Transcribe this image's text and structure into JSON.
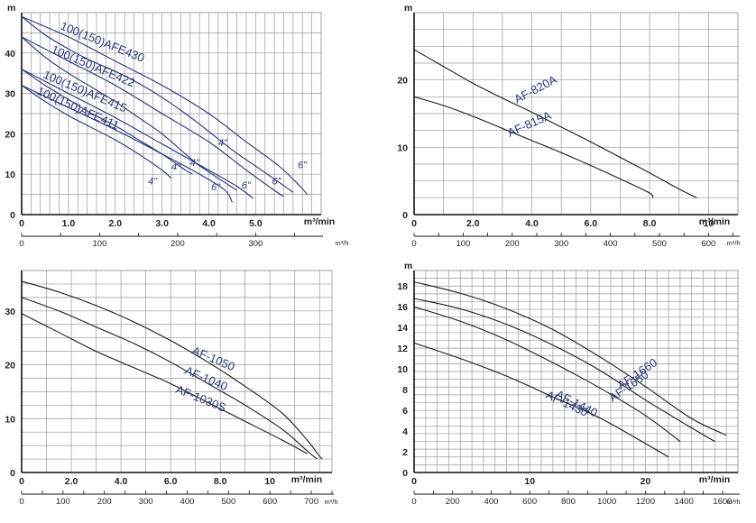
{
  "colors": {
    "grid": "#9a9a9a",
    "axis": "#111111",
    "curve": "#1a1a1a",
    "curve_blue": "#24357a",
    "label": "#2a3a78"
  },
  "chart_data": [
    {
      "type": "line",
      "ylabel": "m",
      "xlabel": "m³/min",
      "x2label": "m³/h",
      "xlim": [
        0,
        6.4
      ],
      "ylim": [
        0,
        50
      ],
      "x_major": [
        0,
        6.4,
        0.2
      ],
      "y_major": [
        0,
        50,
        5
      ],
      "x_ticks": [
        0,
        1.0,
        2.0,
        3.0,
        4.0,
        5.0
      ],
      "x_tick_labels": [
        "0",
        "1.0",
        "2.0",
        "3.0",
        "4.0",
        "5.0"
      ],
      "y_ticks": [
        0,
        10,
        20,
        30,
        40
      ],
      "y_tick_labels": [
        "0",
        "10",
        "20",
        "30",
        "40"
      ],
      "x2_ticks": [
        0,
        100,
        200,
        300
      ],
      "x2_tick_labels": [
        "0",
        "100",
        "200",
        "300"
      ],
      "x2_factor": 60,
      "series": [
        {
          "name": "100(150)AFE430",
          "points": [
            [
              0,
              49
            ],
            [
              0.5,
              44.5
            ],
            [
              1.0,
              41
            ],
            [
              1.5,
              38
            ],
            [
              2.0,
              35.5
            ],
            [
              2.5,
              32.5
            ],
            [
              3.0,
              29
            ],
            [
              3.5,
              25
            ],
            [
              3.9,
              21.5
            ]
          ]
        },
        {
          "name": "100(150)AFE422",
          "points": [
            [
              0,
              44
            ],
            [
              0.5,
              39
            ],
            [
              1.0,
              35
            ],
            [
              1.5,
              31.5
            ],
            [
              2.0,
              28
            ],
            [
              2.5,
              24
            ],
            [
              3.0,
              20
            ],
            [
              3.5,
              15
            ],
            [
              3.75,
              12.5
            ]
          ]
        },
        {
          "name": "100(150)AFE415",
          "points": [
            [
              0,
              36
            ],
            [
              0.5,
              32
            ],
            [
              1.0,
              28.5
            ],
            [
              1.5,
              25
            ],
            [
              2.0,
              22
            ],
            [
              2.5,
              18.5
            ],
            [
              3.0,
              15
            ],
            [
              3.5,
              11
            ],
            [
              3.65,
              10
            ]
          ]
        },
        {
          "name": "100(150)AFE411",
          "points": [
            [
              0,
              32
            ],
            [
              0.5,
              28
            ],
            [
              1.0,
              24.5
            ],
            [
              1.5,
              21.5
            ],
            [
              2.0,
              18.5
            ],
            [
              2.5,
              15
            ],
            [
              3.0,
              11
            ],
            [
              3.2,
              9
            ]
          ]
        }
      ],
      "extra_curves": [
        {
          "points": [
            [
              3.9,
              21.5
            ],
            [
              4.5,
              16
            ],
            [
              5.0,
              12
            ],
            [
              5.5,
              8
            ],
            [
              5.8,
              5.5
            ]
          ]
        },
        {
          "points": [
            [
              3.75,
              12.5
            ],
            [
              4.2,
              9
            ],
            [
              4.6,
              6
            ]
          ]
        },
        {
          "points": [
            [
              0,
              49
            ],
            [
              1.0,
              44
            ],
            [
              2.0,
              38
            ],
            [
              3.0,
              32
            ],
            [
              4.0,
              25
            ],
            [
              4.8,
              18
            ],
            [
              5.5,
              12
            ],
            [
              5.95,
              7
            ],
            [
              6.1,
              5
            ]
          ]
        },
        {
          "points": [
            [
              0,
              44
            ],
            [
              1.0,
              38
            ],
            [
              2.0,
              32
            ],
            [
              3.0,
              25
            ],
            [
              4.0,
              18
            ],
            [
              4.8,
              11
            ],
            [
              5.4,
              6
            ],
            [
              5.6,
              4.5
            ]
          ]
        },
        {
          "points": [
            [
              0,
              36
            ],
            [
              1.0,
              30
            ],
            [
              2.0,
              24
            ],
            [
              3.0,
              17.5
            ],
            [
              4.0,
              11
            ],
            [
              4.6,
              7
            ],
            [
              4.95,
              4
            ]
          ]
        },
        {
          "points": [
            [
              0,
              32
            ],
            [
              1.0,
              26.5
            ],
            [
              2.0,
              21
            ],
            [
              3.0,
              15
            ],
            [
              3.8,
              10
            ],
            [
              4.35,
              6
            ],
            [
              4.5,
              3
            ]
          ]
        }
      ],
      "size_labels": [
        {
          "text": "4\"",
          "x": 4.2,
          "y": 17
        },
        {
          "text": "4\"",
          "x": 3.6,
          "y": 12
        },
        {
          "text": "4\"",
          "x": 3.2,
          "y": 11
        },
        {
          "text": "4\"",
          "x": 2.7,
          "y": 7.5
        },
        {
          "text": "6\"",
          "x": 5.9,
          "y": 11.5
        },
        {
          "text": "6\"",
          "x": 5.35,
          "y": 7.5
        },
        {
          "text": "6\"",
          "x": 4.7,
          "y": 6.5
        },
        {
          "text": "6\"",
          "x": 4.05,
          "y": 6
        }
      ]
    },
    {
      "type": "line",
      "ylabel": "m",
      "xlabel": "m³/min",
      "x2label": "m³/h",
      "xlim": [
        0,
        11
      ],
      "ylim": [
        0,
        30
      ],
      "x_major": [
        0,
        11,
        1
      ],
      "y_major": [
        0,
        30,
        2.5
      ],
      "x_ticks": [
        0,
        2.0,
        4.0,
        6.0,
        8.0,
        10
      ],
      "x_tick_labels": [
        "0",
        "2.0",
        "4.0",
        "6.0",
        "8.0",
        "10"
      ],
      "y_ticks": [
        0,
        10,
        20
      ],
      "y_tick_labels": [
        "0",
        "10",
        "20"
      ],
      "x2_ticks": [
        0,
        100,
        200,
        300,
        400,
        500,
        600
      ],
      "x2_tick_labels": [
        "0",
        "100",
        "200",
        "300",
        "400",
        "500",
        "600"
      ],
      "x2_factor": 60,
      "series": [
        {
          "name": "AF-820A",
          "points": [
            [
              0,
              24.5
            ],
            [
              1.0,
              22
            ],
            [
              2.0,
              19.5
            ],
            [
              3.0,
              17.3
            ],
            [
              4.0,
              15.2
            ],
            [
              5.0,
              13
            ],
            [
              6.0,
              10.8
            ],
            [
              7.0,
              8.5
            ],
            [
              8.0,
              6.2
            ],
            [
              9.0,
              3.8
            ],
            [
              9.6,
              2.5
            ]
          ]
        },
        {
          "name": "AF-815A",
          "points": [
            [
              0,
              17.5
            ],
            [
              1.0,
              16.2
            ],
            [
              2.0,
              14.6
            ],
            [
              3.0,
              12.8
            ],
            [
              4.0,
              11
            ],
            [
              5.0,
              9.2
            ],
            [
              6.0,
              7.3
            ],
            [
              7.0,
              5.3
            ],
            [
              8.0,
              3.2
            ],
            [
              8.1,
              2.5
            ]
          ]
        }
      ],
      "extra_curves": [],
      "size_labels": []
    },
    {
      "type": "line",
      "ylabel": "",
      "xlabel": "m³/min",
      "x2label": "m³/h",
      "xlim": [
        0,
        12.5
      ],
      "ylim": [
        0,
        37.5
      ],
      "x_major": [
        0,
        12.5,
        1
      ],
      "y_major": [
        0,
        37.5,
        2.5
      ],
      "x_ticks": [
        0,
        2.0,
        4.0,
        6.0,
        8.0,
        10
      ],
      "x_tick_labels": [
        "0",
        "2.0",
        "4.0",
        "6.0",
        "8.0",
        "10"
      ],
      "y_ticks": [
        0,
        10,
        20,
        30
      ],
      "y_tick_labels": [
        "0",
        "10",
        "20",
        "30"
      ],
      "x2_ticks": [
        0,
        100,
        200,
        300,
        400,
        500,
        600,
        700
      ],
      "x2_tick_labels": [
        "0",
        "100",
        "200",
        "300",
        "400",
        "500",
        "600",
        "700"
      ],
      "x2_factor": 60,
      "series": [
        {
          "name": "AF-1050",
          "points": [
            [
              0,
              35.5
            ],
            [
              1.5,
              33.5
            ],
            [
              3.0,
              31
            ],
            [
              4.5,
              28
            ],
            [
              6.0,
              24.5
            ],
            [
              7.5,
              20.5
            ],
            [
              9.0,
              16
            ],
            [
              10.5,
              11
            ],
            [
              11.5,
              6
            ],
            [
              12.0,
              3
            ],
            [
              12.1,
              2.5
            ]
          ]
        },
        {
          "name": "AF-1040",
          "points": [
            [
              0,
              32.5
            ],
            [
              1.5,
              30
            ],
            [
              3.0,
              27
            ],
            [
              4.5,
              24
            ],
            [
              6.0,
              20.5
            ],
            [
              7.5,
              16.5
            ],
            [
              9.0,
              12.5
            ],
            [
              10.5,
              8
            ],
            [
              11.5,
              4
            ],
            [
              11.9,
              2.5
            ]
          ]
        },
        {
          "name": "AF-1030S",
          "points": [
            [
              0,
              29.5
            ],
            [
              1.5,
              26
            ],
            [
              3.0,
              22.5
            ],
            [
              4.5,
              19.5
            ],
            [
              6.0,
              16.5
            ],
            [
              7.5,
              13
            ],
            [
              9.0,
              9.5
            ],
            [
              10.5,
              6
            ],
            [
              11.5,
              3.5
            ]
          ]
        }
      ],
      "extra_curves": [],
      "size_labels": []
    },
    {
      "type": "line",
      "ylabel": "m",
      "xlabel": "m³/min",
      "x2label": "m³/h",
      "xlim": [
        0,
        28
      ],
      "ylim": [
        0,
        19.5
      ],
      "x_major": [
        0,
        28,
        1
      ],
      "y_major": [
        0,
        19.5,
        0.75
      ],
      "x_ticks": [
        0,
        10,
        20
      ],
      "x_tick_labels": [
        "0",
        "10",
        "20"
      ],
      "y_ticks": [
        0,
        2,
        4,
        6,
        8,
        10,
        12,
        14,
        16,
        18
      ],
      "y_tick_labels": [
        "0",
        "2",
        "4",
        "6",
        "8",
        "10",
        "12",
        "14",
        "16",
        "18"
      ],
      "x2_ticks": [
        0,
        200,
        400,
        600,
        800,
        1000,
        1200,
        1400,
        1600
      ],
      "x2_tick_labels": [
        "0",
        "200",
        "400",
        "600",
        "800",
        "1000",
        "1200",
        "1400",
        "1600"
      ],
      "x2_factor": 60,
      "series": [
        {
          "name": "AF-1660",
          "points": [
            [
              0,
              18.4
            ],
            [
              4,
              17.3
            ],
            [
              8,
              15.8
            ],
            [
              12,
              13.8
            ],
            [
              16,
              11.2
            ],
            [
              20,
              8.3
            ],
            [
              24,
              5.2
            ],
            [
              27,
              3.6
            ]
          ]
        },
        {
          "name": "AF-1650",
          "points": [
            [
              0,
              16.8
            ],
            [
              4,
              15.8
            ],
            [
              8,
              14.3
            ],
            [
              12,
              12.3
            ],
            [
              16,
              9.9
            ],
            [
              20,
              7
            ],
            [
              24,
              4.3
            ],
            [
              26,
              3
            ]
          ]
        },
        {
          "name": "AF-1440",
          "points": [
            [
              0,
              16
            ],
            [
              4,
              14.6
            ],
            [
              8,
              12.8
            ],
            [
              12,
              10.6
            ],
            [
              16,
              8.2
            ],
            [
              20,
              5.5
            ],
            [
              23,
              3
            ]
          ]
        },
        {
          "name": "AF-1430",
          "points": [
            [
              0,
              12.5
            ],
            [
              4,
              11
            ],
            [
              8,
              9.3
            ],
            [
              12,
              7.3
            ],
            [
              16,
              5.3
            ],
            [
              20,
              2.8
            ],
            [
              22,
              1.5
            ]
          ]
        }
      ],
      "extra_curves": [],
      "size_labels": []
    }
  ]
}
